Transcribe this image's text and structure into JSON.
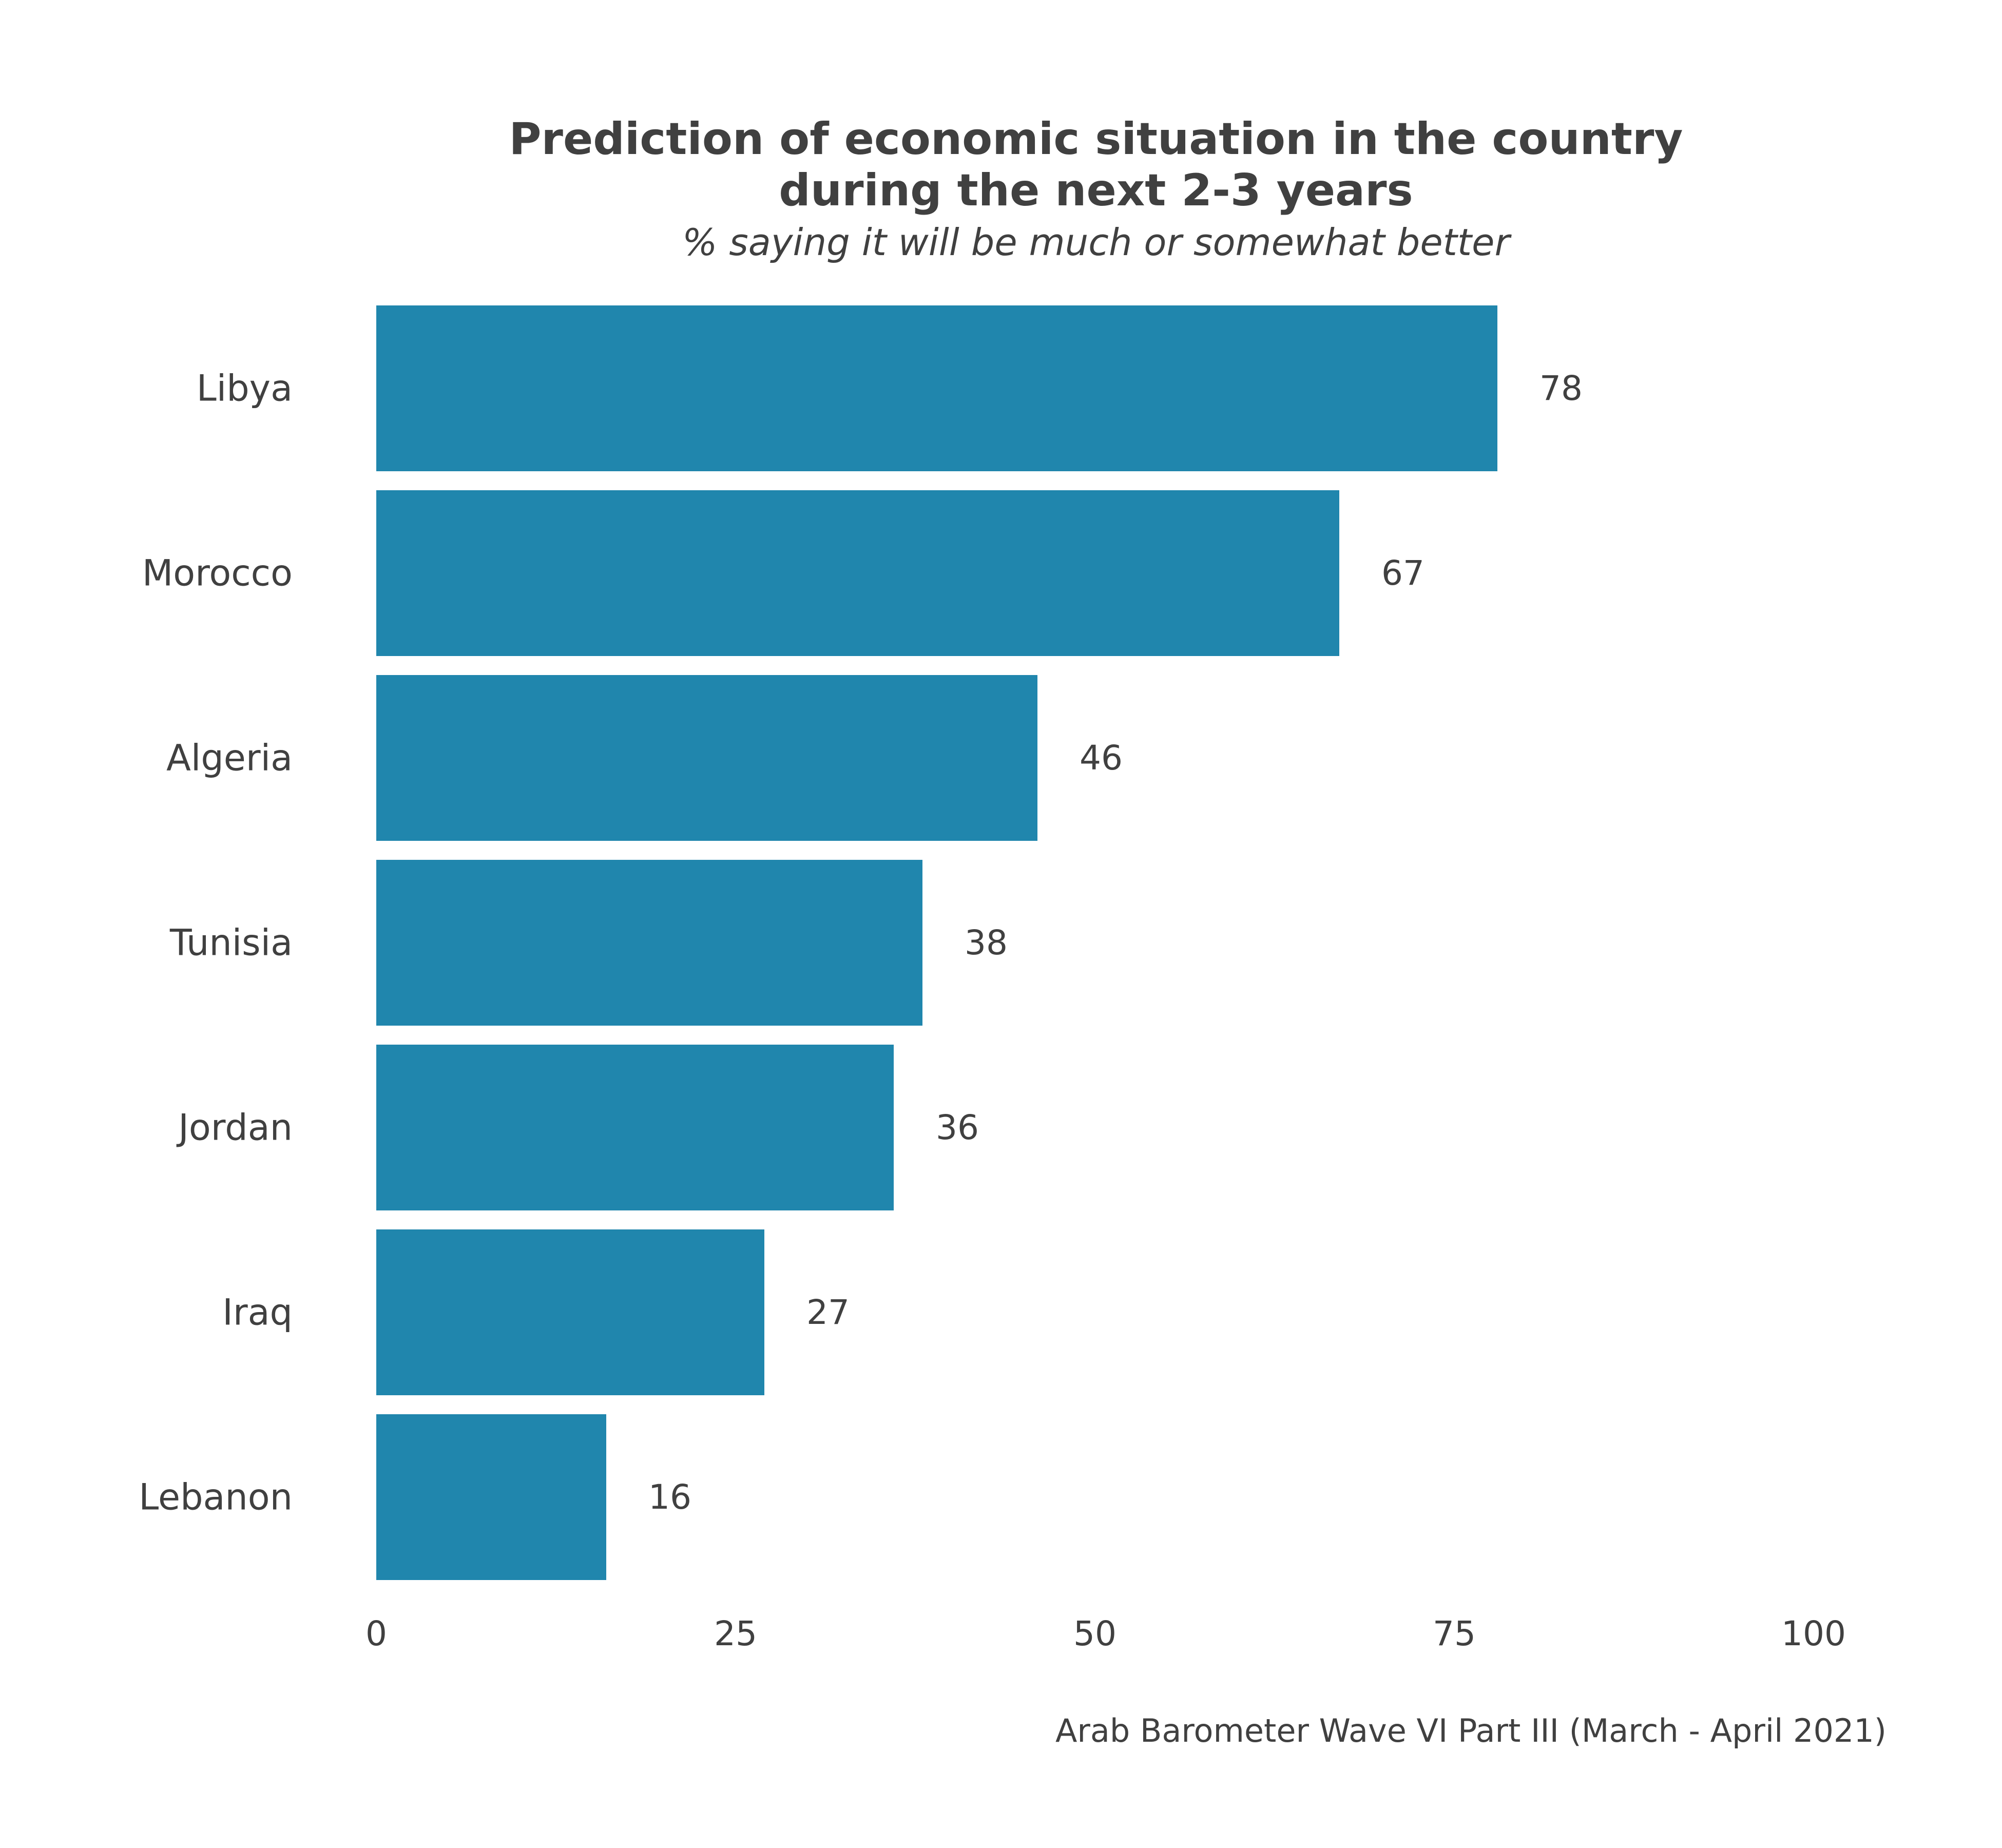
{
  "chart_data": {
    "type": "bar",
    "orientation": "horizontal",
    "title_lines": [
      "Prediction of economic situation in the country",
      "during the next 2-3 years"
    ],
    "subtitle": "% saying it will be much or somewhat better",
    "caption": "Arab Barometer Wave VI Part III (March - April 2021)",
    "categories": [
      "Libya",
      "Morocco",
      "Algeria",
      "Tunisia",
      "Jordan",
      "Iraq",
      "Lebanon"
    ],
    "values": [
      78,
      67,
      46,
      38,
      36,
      27,
      16
    ],
    "value_labels": [
      "78",
      "67",
      "46",
      "38",
      "36",
      "27",
      "16"
    ],
    "xlim": [
      0,
      100
    ],
    "x_ticks": [
      0,
      25,
      50,
      75,
      100
    ],
    "x_tick_labels": [
      "0",
      "25",
      "50",
      "75",
      "100"
    ],
    "xlabel": "",
    "ylabel": "",
    "grid": false,
    "legend": "none",
    "bar_color": "#2086ad"
  }
}
